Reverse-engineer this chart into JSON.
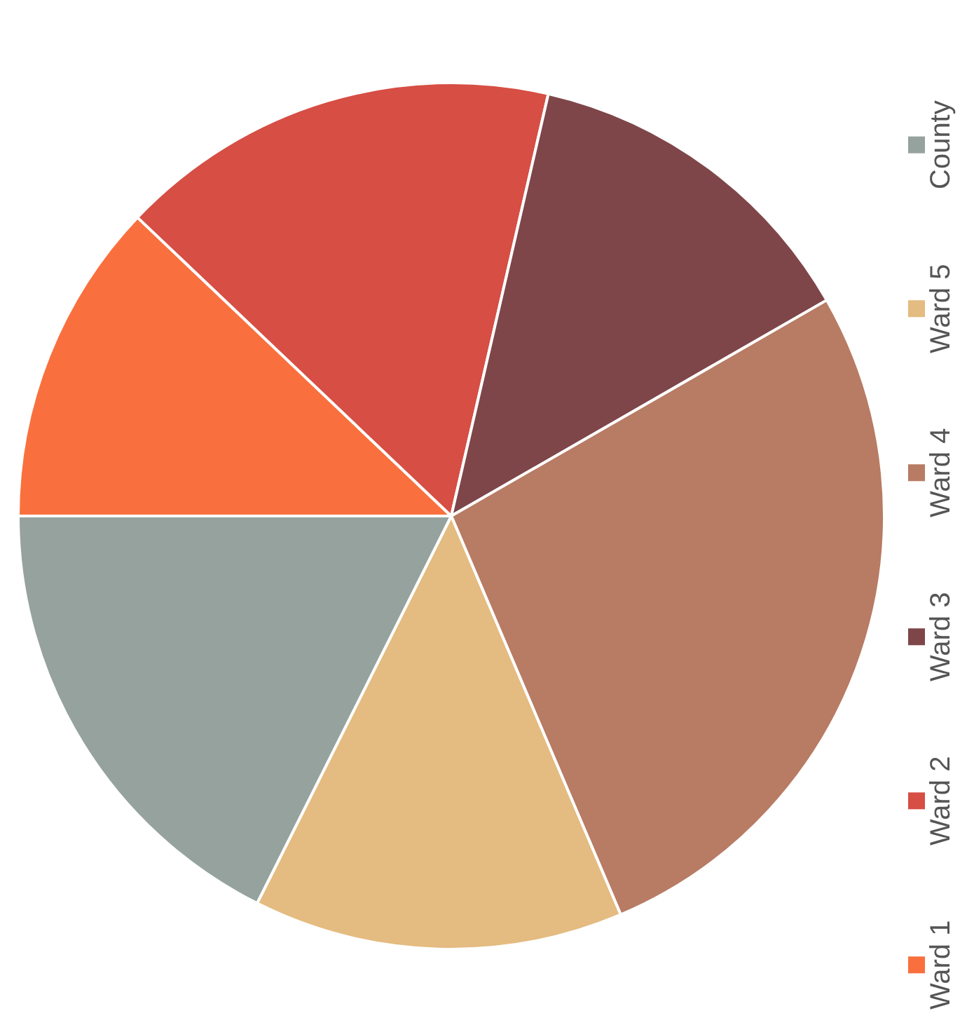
{
  "chart_data": {
    "type": "pie",
    "categories": [
      "Ward 1",
      "Ward 2",
      "Ward 3",
      "Ward 4",
      "Ward 5",
      "County"
    ],
    "values": [
      12.1,
      16.5,
      13.1,
      26.9,
      13.8,
      17.6
    ],
    "colors": [
      "#f9703e",
      "#d64e44",
      "#7e4649",
      "#b87b64",
      "#e4bb80",
      "#95a29e"
    ],
    "legend": "right"
  }
}
